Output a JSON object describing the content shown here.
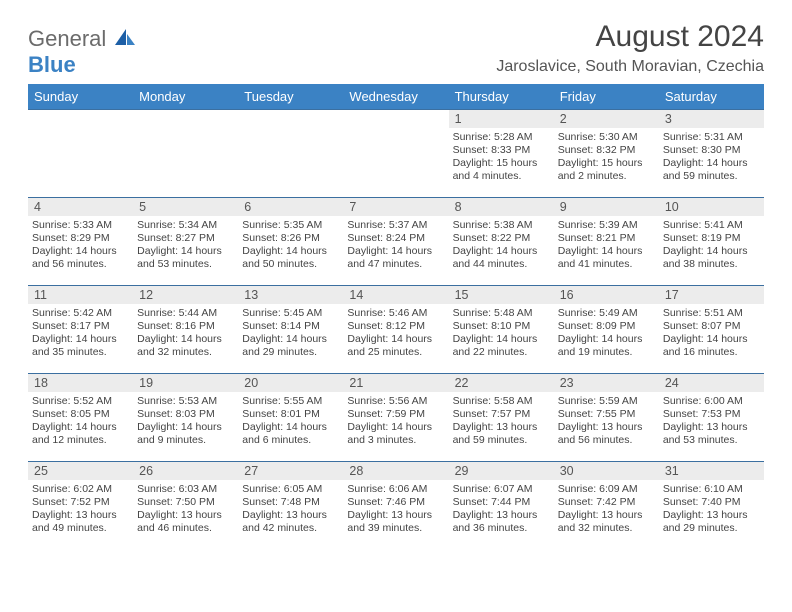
{
  "logo": {
    "part1": "General",
    "part2": "Blue"
  },
  "title": "August 2024",
  "location": "Jaroslavice, South Moravian, Czechia",
  "colors": {
    "header_bg": "#3b82c4",
    "header_text": "#ffffff",
    "daynum_bg": "#ececec",
    "cell_border": "#3b6fa0",
    "logo_gray": "#6b6b6b",
    "logo_blue": "#3b82c4"
  },
  "weekdays": [
    "Sunday",
    "Monday",
    "Tuesday",
    "Wednesday",
    "Thursday",
    "Friday",
    "Saturday"
  ],
  "weeks": [
    [
      {
        "day": "",
        "sunrise": "",
        "sunset": "",
        "daylight": ""
      },
      {
        "day": "",
        "sunrise": "",
        "sunset": "",
        "daylight": ""
      },
      {
        "day": "",
        "sunrise": "",
        "sunset": "",
        "daylight": ""
      },
      {
        "day": "",
        "sunrise": "",
        "sunset": "",
        "daylight": ""
      },
      {
        "day": "1",
        "sunrise": "Sunrise: 5:28 AM",
        "sunset": "Sunset: 8:33 PM",
        "daylight": "Daylight: 15 hours and 4 minutes."
      },
      {
        "day": "2",
        "sunrise": "Sunrise: 5:30 AM",
        "sunset": "Sunset: 8:32 PM",
        "daylight": "Daylight: 15 hours and 2 minutes."
      },
      {
        "day": "3",
        "sunrise": "Sunrise: 5:31 AM",
        "sunset": "Sunset: 8:30 PM",
        "daylight": "Daylight: 14 hours and 59 minutes."
      }
    ],
    [
      {
        "day": "4",
        "sunrise": "Sunrise: 5:33 AM",
        "sunset": "Sunset: 8:29 PM",
        "daylight": "Daylight: 14 hours and 56 minutes."
      },
      {
        "day": "5",
        "sunrise": "Sunrise: 5:34 AM",
        "sunset": "Sunset: 8:27 PM",
        "daylight": "Daylight: 14 hours and 53 minutes."
      },
      {
        "day": "6",
        "sunrise": "Sunrise: 5:35 AM",
        "sunset": "Sunset: 8:26 PM",
        "daylight": "Daylight: 14 hours and 50 minutes."
      },
      {
        "day": "7",
        "sunrise": "Sunrise: 5:37 AM",
        "sunset": "Sunset: 8:24 PM",
        "daylight": "Daylight: 14 hours and 47 minutes."
      },
      {
        "day": "8",
        "sunrise": "Sunrise: 5:38 AM",
        "sunset": "Sunset: 8:22 PM",
        "daylight": "Daylight: 14 hours and 44 minutes."
      },
      {
        "day": "9",
        "sunrise": "Sunrise: 5:39 AM",
        "sunset": "Sunset: 8:21 PM",
        "daylight": "Daylight: 14 hours and 41 minutes."
      },
      {
        "day": "10",
        "sunrise": "Sunrise: 5:41 AM",
        "sunset": "Sunset: 8:19 PM",
        "daylight": "Daylight: 14 hours and 38 minutes."
      }
    ],
    [
      {
        "day": "11",
        "sunrise": "Sunrise: 5:42 AM",
        "sunset": "Sunset: 8:17 PM",
        "daylight": "Daylight: 14 hours and 35 minutes."
      },
      {
        "day": "12",
        "sunrise": "Sunrise: 5:44 AM",
        "sunset": "Sunset: 8:16 PM",
        "daylight": "Daylight: 14 hours and 32 minutes."
      },
      {
        "day": "13",
        "sunrise": "Sunrise: 5:45 AM",
        "sunset": "Sunset: 8:14 PM",
        "daylight": "Daylight: 14 hours and 29 minutes."
      },
      {
        "day": "14",
        "sunrise": "Sunrise: 5:46 AM",
        "sunset": "Sunset: 8:12 PM",
        "daylight": "Daylight: 14 hours and 25 minutes."
      },
      {
        "day": "15",
        "sunrise": "Sunrise: 5:48 AM",
        "sunset": "Sunset: 8:10 PM",
        "daylight": "Daylight: 14 hours and 22 minutes."
      },
      {
        "day": "16",
        "sunrise": "Sunrise: 5:49 AM",
        "sunset": "Sunset: 8:09 PM",
        "daylight": "Daylight: 14 hours and 19 minutes."
      },
      {
        "day": "17",
        "sunrise": "Sunrise: 5:51 AM",
        "sunset": "Sunset: 8:07 PM",
        "daylight": "Daylight: 14 hours and 16 minutes."
      }
    ],
    [
      {
        "day": "18",
        "sunrise": "Sunrise: 5:52 AM",
        "sunset": "Sunset: 8:05 PM",
        "daylight": "Daylight: 14 hours and 12 minutes."
      },
      {
        "day": "19",
        "sunrise": "Sunrise: 5:53 AM",
        "sunset": "Sunset: 8:03 PM",
        "daylight": "Daylight: 14 hours and 9 minutes."
      },
      {
        "day": "20",
        "sunrise": "Sunrise: 5:55 AM",
        "sunset": "Sunset: 8:01 PM",
        "daylight": "Daylight: 14 hours and 6 minutes."
      },
      {
        "day": "21",
        "sunrise": "Sunrise: 5:56 AM",
        "sunset": "Sunset: 7:59 PM",
        "daylight": "Daylight: 14 hours and 3 minutes."
      },
      {
        "day": "22",
        "sunrise": "Sunrise: 5:58 AM",
        "sunset": "Sunset: 7:57 PM",
        "daylight": "Daylight: 13 hours and 59 minutes."
      },
      {
        "day": "23",
        "sunrise": "Sunrise: 5:59 AM",
        "sunset": "Sunset: 7:55 PM",
        "daylight": "Daylight: 13 hours and 56 minutes."
      },
      {
        "day": "24",
        "sunrise": "Sunrise: 6:00 AM",
        "sunset": "Sunset: 7:53 PM",
        "daylight": "Daylight: 13 hours and 53 minutes."
      }
    ],
    [
      {
        "day": "25",
        "sunrise": "Sunrise: 6:02 AM",
        "sunset": "Sunset: 7:52 PM",
        "daylight": "Daylight: 13 hours and 49 minutes."
      },
      {
        "day": "26",
        "sunrise": "Sunrise: 6:03 AM",
        "sunset": "Sunset: 7:50 PM",
        "daylight": "Daylight: 13 hours and 46 minutes."
      },
      {
        "day": "27",
        "sunrise": "Sunrise: 6:05 AM",
        "sunset": "Sunset: 7:48 PM",
        "daylight": "Daylight: 13 hours and 42 minutes."
      },
      {
        "day": "28",
        "sunrise": "Sunrise: 6:06 AM",
        "sunset": "Sunset: 7:46 PM",
        "daylight": "Daylight: 13 hours and 39 minutes."
      },
      {
        "day": "29",
        "sunrise": "Sunrise: 6:07 AM",
        "sunset": "Sunset: 7:44 PM",
        "daylight": "Daylight: 13 hours and 36 minutes."
      },
      {
        "day": "30",
        "sunrise": "Sunrise: 6:09 AM",
        "sunset": "Sunset: 7:42 PM",
        "daylight": "Daylight: 13 hours and 32 minutes."
      },
      {
        "day": "31",
        "sunrise": "Sunrise: 6:10 AM",
        "sunset": "Sunset: 7:40 PM",
        "daylight": "Daylight: 13 hours and 29 minutes."
      }
    ]
  ]
}
